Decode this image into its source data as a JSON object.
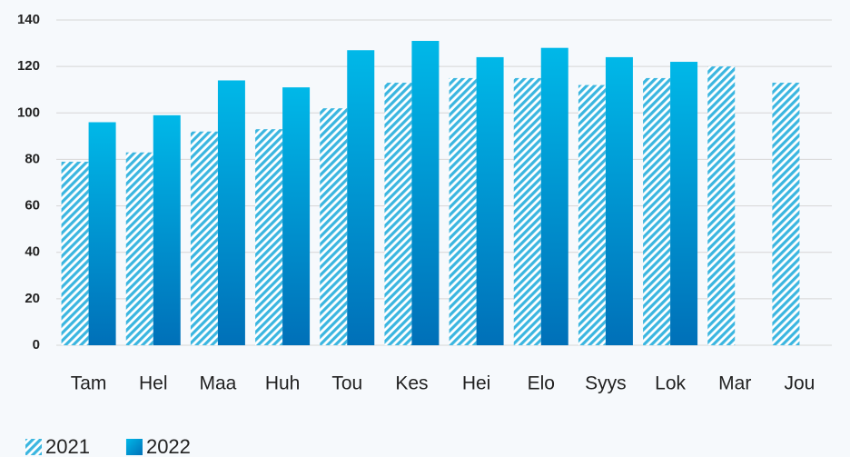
{
  "chart_data": {
    "type": "bar",
    "categories": [
      "Tam",
      "Hel",
      "Maa",
      "Huh",
      "Tou",
      "Kes",
      "Hei",
      "Elo",
      "Syys",
      "Lok",
      "Mar",
      "Jou"
    ],
    "series": [
      {
        "name": "2021",
        "color": "#3bb6e0",
        "hatch": true,
        "values": [
          79,
          83,
          92,
          93,
          102,
          113,
          115,
          115,
          112,
          115,
          120,
          113
        ]
      },
      {
        "name": "2022",
        "color": "#0a9ad6",
        "hatch": false,
        "values": [
          96,
          99,
          114,
          111,
          127,
          131,
          124,
          128,
          124,
          122,
          null,
          null
        ]
      }
    ],
    "ylim": [
      0,
      140
    ],
    "yticks": [
      0,
      20,
      40,
      60,
      80,
      100,
      120,
      140
    ],
    "grid": true,
    "legend": "bottom-left"
  }
}
